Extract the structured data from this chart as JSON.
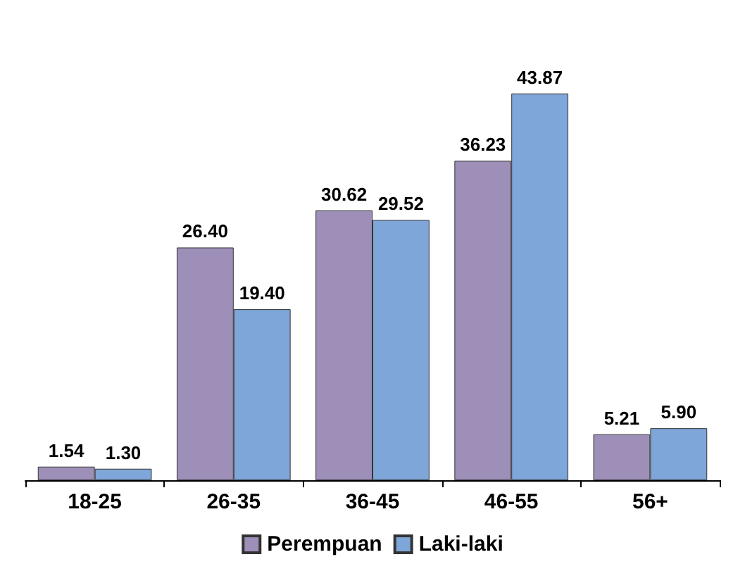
{
  "chart_data": {
    "type": "bar",
    "categories": [
      "18-25",
      "26-35",
      "36-45",
      "46-55",
      "56+"
    ],
    "series": [
      {
        "name": "Perempuan",
        "color": "#9d8fb8",
        "values": [
          1.54,
          26.4,
          30.62,
          36.23,
          5.21
        ],
        "value_labels": [
          "1.54",
          "26.40",
          "30.62",
          "36.23",
          "5.21"
        ]
      },
      {
        "name": "Laki-laki",
        "color": "#7ea6d8",
        "values": [
          1.3,
          19.4,
          29.52,
          43.87,
          5.9
        ],
        "value_labels": [
          "1.30",
          "19.40",
          "29.52",
          "43.87",
          "5.90"
        ]
      }
    ],
    "legend": "bottom"
  }
}
